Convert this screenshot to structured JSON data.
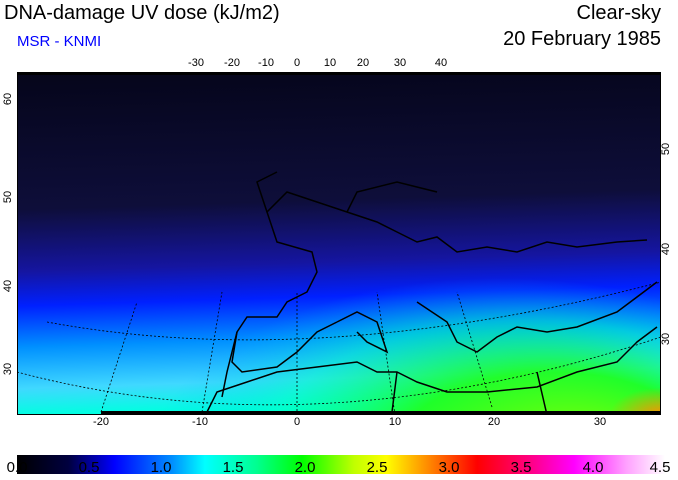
{
  "header": {
    "title": "DNA-damage UV dose (kJ/m2)",
    "source": "MSR - KNMI",
    "condition": "Clear-sky",
    "date": "20 February 1985"
  },
  "axes": {
    "top_lon": [
      "-30",
      "-20",
      "-10",
      "0",
      "10",
      "20",
      "30",
      "40"
    ],
    "bottom_lon": [
      "-20",
      "-10",
      "0",
      "10",
      "20",
      "30"
    ],
    "left_lat": [
      "60",
      "50",
      "40",
      "30"
    ],
    "right_lat": [
      "50",
      "40",
      "30"
    ]
  },
  "colorbar": {
    "labels": [
      "0.0",
      "0.5",
      "1.0",
      "1.5",
      "2.0",
      "2.5",
      "3.0",
      "3.5",
      "4.0",
      "4.5"
    ],
    "min": 0,
    "max": 4.5
  }
}
